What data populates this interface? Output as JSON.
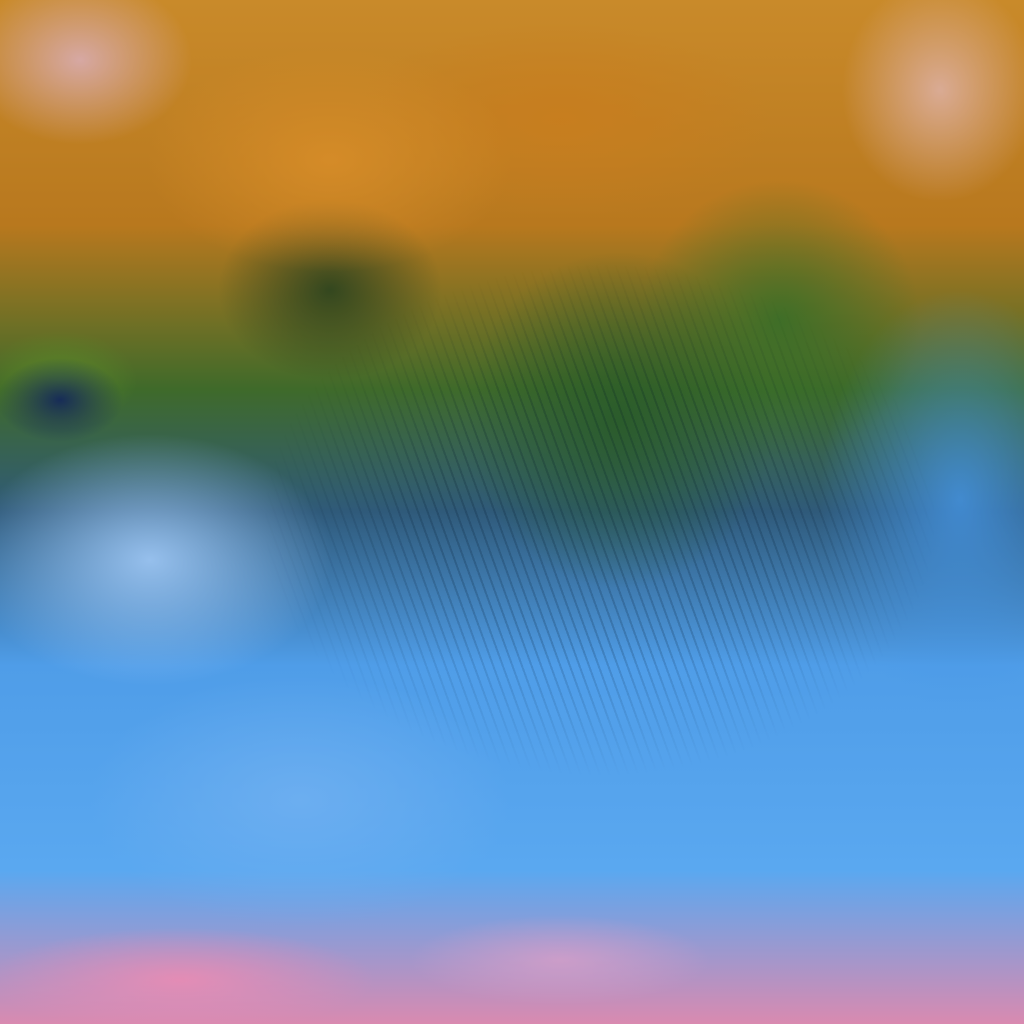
{
  "image": {
    "kind": "false-color satellite imagery",
    "colors": {
      "dust": "#c98a2a",
      "vegetation_cloud": "#3f6a2a",
      "ice_cloud": "#5aa8f0",
      "pink_cloud": "#d98ab0",
      "dark_sea": "#14285a"
    }
  }
}
